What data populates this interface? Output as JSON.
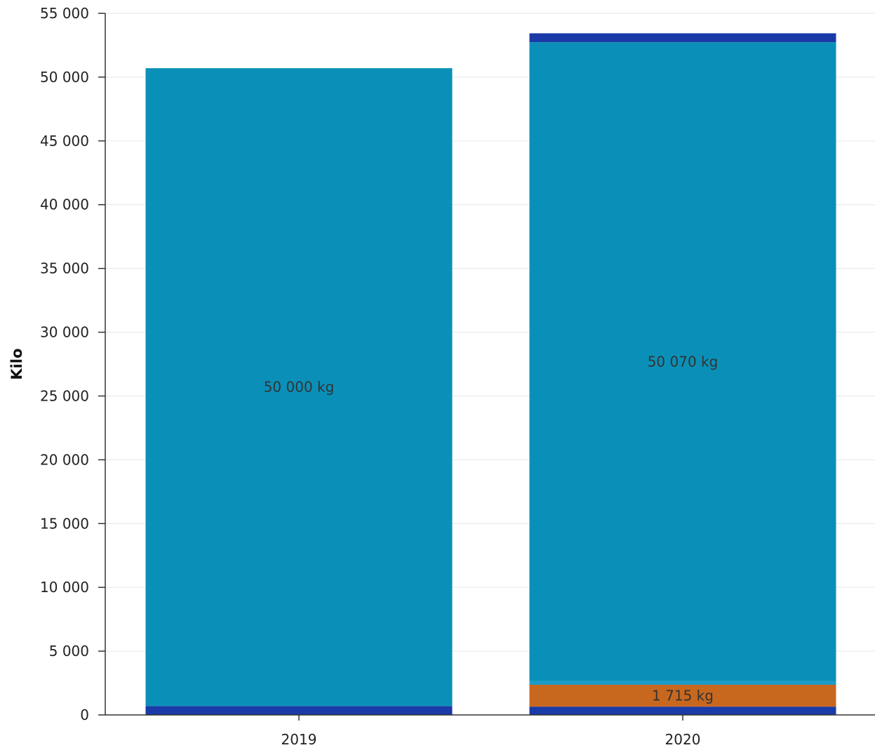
{
  "chart_data": {
    "type": "bar",
    "stacked": true,
    "categories": [
      "2019",
      "2020"
    ],
    "ylabel": "Kilo",
    "ylim": [
      0,
      55000
    ],
    "yticks": [
      0,
      5000,
      10000,
      15000,
      20000,
      25000,
      30000,
      35000,
      40000,
      45000,
      50000,
      55000
    ],
    "ytick_labels": [
      "0",
      "5 000",
      "10 000",
      "15 000",
      "20 000",
      "25 000",
      "30 000",
      "35 000",
      "40 000",
      "45 000",
      "50 000",
      "55 000"
    ],
    "grid": true,
    "series": [
      {
        "color": "#1a3aa8",
        "values": [
          700,
          650
        ],
        "labels": [
          "",
          ""
        ]
      },
      {
        "color": "#c8681e",
        "values": [
          0,
          1715
        ],
        "labels": [
          "",
          "1 715 kg"
        ]
      },
      {
        "color": "#1c9cc8",
        "values": [
          0,
          300
        ],
        "labels": [
          "",
          ""
        ]
      },
      {
        "color": "#0a90b8",
        "values": [
          50000,
          50070
        ],
        "labels": [
          "50 000 kg",
          "50 070 kg"
        ]
      },
      {
        "color": "#1a3aa8",
        "values": [
          0,
          700
        ],
        "labels": [
          "",
          ""
        ]
      }
    ]
  }
}
